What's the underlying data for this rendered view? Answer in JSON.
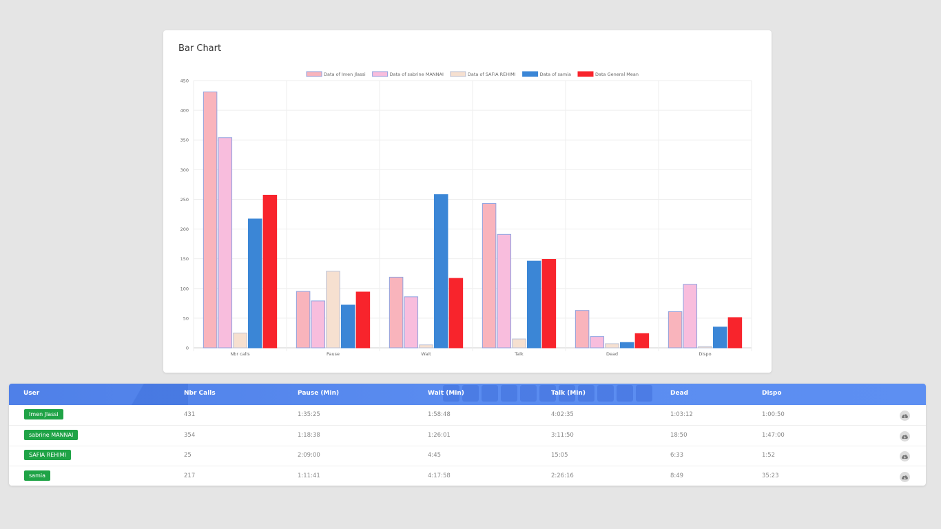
{
  "card": {
    "title": "Bar Chart"
  },
  "chart_data": {
    "type": "bar",
    "categories": [
      "Nbr calls",
      "Pause",
      "Wait",
      "Talk",
      "Dead",
      "Dispo"
    ],
    "series": [
      {
        "name": "Data of Imen Jlassi",
        "color": "#f9b4bc",
        "border": "#8fa3e0",
        "values": [
          431,
          95,
          119,
          243,
          63,
          61
        ]
      },
      {
        "name": "Data of sabrine MANNAI",
        "color": "#f8bddd",
        "border": "#8fa3e0",
        "values": [
          354,
          79,
          86,
          191,
          19,
          107
        ]
      },
      {
        "name": "Data of SAFIA REHIMI",
        "color": "#f6e0d0",
        "border": "#b9c0d6",
        "values": [
          25,
          129,
          5,
          15,
          7,
          2
        ]
      },
      {
        "name": "Data of samia",
        "color": "#3b86d6",
        "border": "#3b86d6",
        "values": [
          217,
          72,
          258,
          146,
          9,
          35
        ]
      },
      {
        "name": "Data General Mean",
        "color": "#f8242c",
        "border": "#f8242c",
        "values": [
          257,
          94,
          117,
          149,
          24,
          51
        ]
      }
    ],
    "ylim": [
      0,
      450
    ],
    "yticks": [
      0,
      50,
      100,
      150,
      200,
      250,
      300,
      350,
      400,
      450
    ],
    "grid": true,
    "legend_position": "top",
    "xlabel": "",
    "ylabel": ""
  },
  "table": {
    "headers": [
      "User",
      "Nbr Calls",
      "Pause (Min)",
      "Wait (Min)",
      "Talk (Min)",
      "Dead",
      "Dispo"
    ],
    "rows": [
      {
        "user": "Imen Jlassi",
        "calls": "431",
        "pause": "1:35:25",
        "wait": "1:58:48",
        "talk": "4:02:35",
        "dead": "1:03:12",
        "dispo": "1:00:50"
      },
      {
        "user": "sabrine MANNAI",
        "calls": "354",
        "pause": "1:18:38",
        "wait": "1:26:01",
        "talk": "3:11:50",
        "dead": "18:50",
        "dispo": "1:47:00"
      },
      {
        "user": "SAFIA REHIMI",
        "calls": "25",
        "pause": "2:09:00",
        "wait": "4:45",
        "talk": "15:05",
        "dead": "6:33",
        "dispo": "1:52"
      },
      {
        "user": "samia",
        "calls": "217",
        "pause": "1:11:41",
        "wait": "4:17:58",
        "talk": "2:26:16",
        "dead": "8:49",
        "dispo": "35:23"
      }
    ],
    "badge_color": "#1fa346",
    "header_color": "#5a8cf0",
    "download_icon": "cloud-download-icon"
  }
}
